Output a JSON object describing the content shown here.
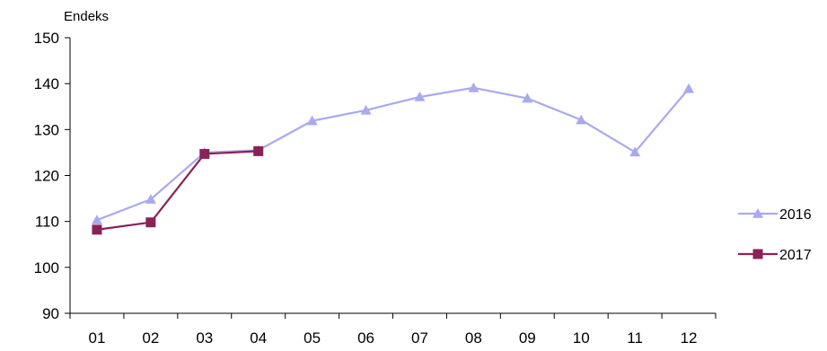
{
  "chart_data": {
    "type": "line",
    "ylabel": "Endeks",
    "ylim": [
      90,
      150
    ],
    "yticks": [
      90,
      100,
      110,
      120,
      130,
      140,
      150
    ],
    "categories": [
      "01",
      "02",
      "03",
      "04",
      "05",
      "06",
      "07",
      "08",
      "09",
      "10",
      "11",
      "12"
    ],
    "grid": false,
    "legend_position": "right",
    "series": [
      {
        "name": "2016",
        "color": "#a9a9f0",
        "marker": "triangle",
        "values": [
          110.3,
          114.8,
          125.0,
          125.5,
          131.9,
          134.2,
          137.1,
          139.1,
          136.8,
          132.1,
          125.1,
          138.9
        ]
      },
      {
        "name": "2017",
        "color": "#8b2257",
        "marker": "square",
        "values": [
          108.2,
          109.8,
          124.7,
          125.3,
          null,
          null,
          null,
          null,
          null,
          null,
          null,
          null
        ]
      }
    ]
  }
}
